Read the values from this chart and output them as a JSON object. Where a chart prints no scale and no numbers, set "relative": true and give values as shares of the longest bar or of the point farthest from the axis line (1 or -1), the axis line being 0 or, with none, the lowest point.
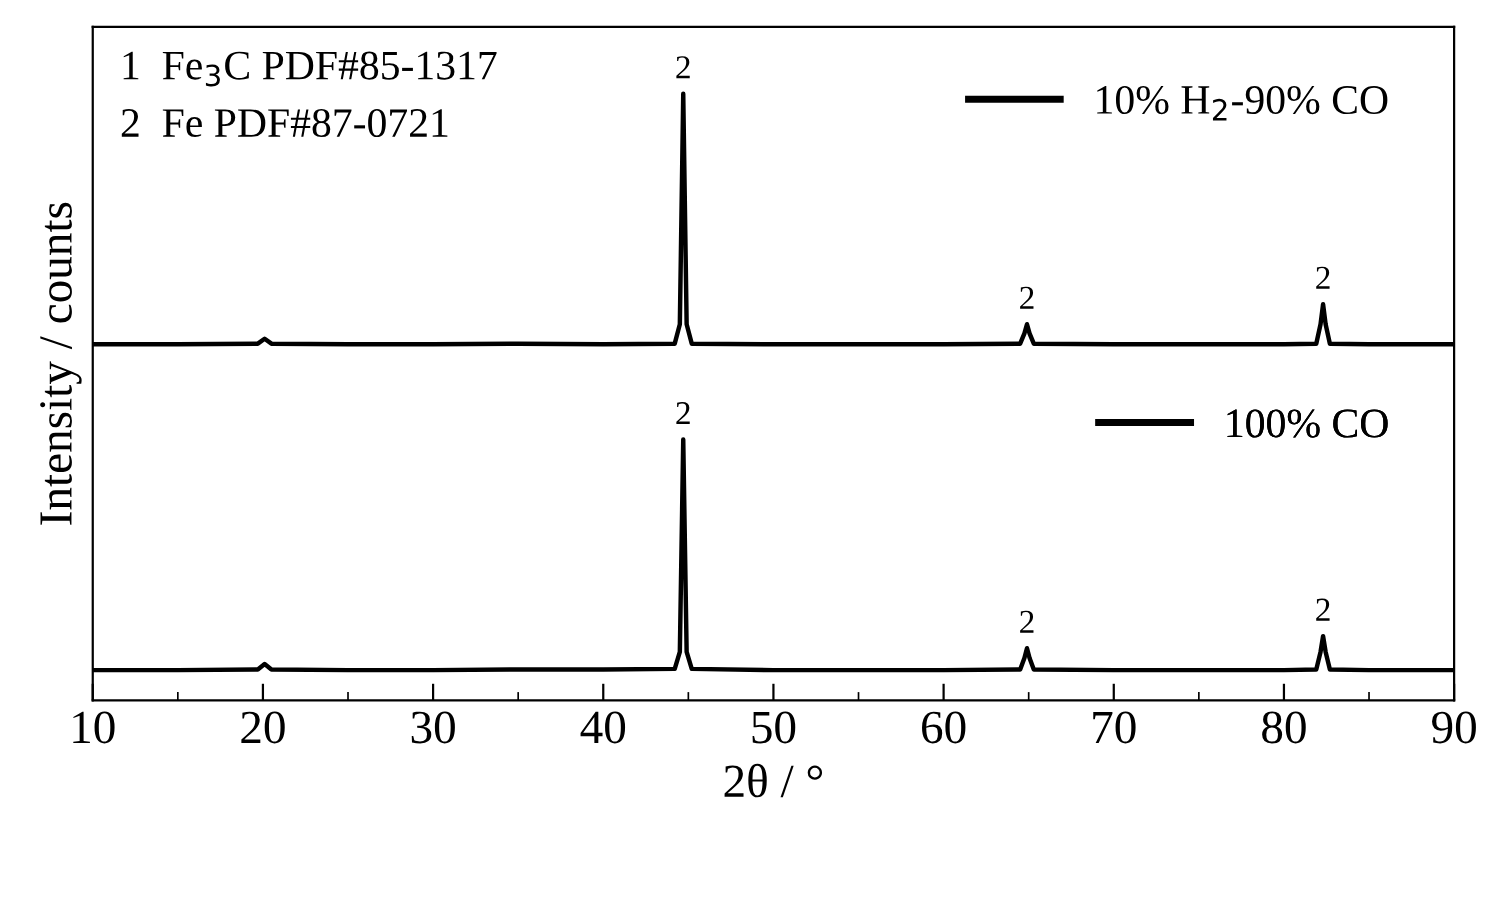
{
  "chart_data": {
    "type": "line",
    "relative": true,
    "xlabel": "2θ / °",
    "ylabel": "Intensity / counts",
    "tick_labels": "x",
    "legend": "right",
    "grid": false,
    "marker": "none",
    "line_style": "solid",
    "x": [
      10,
      15,
      19.7,
      20.1,
      20.5,
      25,
      30,
      35,
      40,
      44.2,
      44.5,
      44.7,
      44.9,
      45.2,
      50,
      55,
      60,
      64.5,
      64.75,
      64.9,
      65.05,
      65.3,
      70,
      75,
      80,
      81.9,
      82.15,
      82.3,
      82.45,
      82.7,
      85,
      90
    ],
    "xlim": [
      10,
      90
    ],
    "xticks": [
      10,
      {
        "value": 15,
        "label": null
      },
      20,
      {
        "value": 25,
        "label": null
      },
      30,
      {
        "value": 35,
        "label": null
      },
      40,
      {
        "value": 45,
        "label": null
      },
      50,
      {
        "value": 55,
        "label": null
      },
      60,
      {
        "value": 65,
        "label": null
      },
      70,
      {
        "value": 75,
        "label": null
      },
      80,
      {
        "value": 85,
        "label": null
      },
      90
    ],
    "series": [
      {
        "name": "10% H$_{2}$-90% CO",
        "color": "#000000",
        "values": [
          0.587,
          0.587,
          0.588,
          0.596,
          0.588,
          0.587,
          0.587,
          0.588,
          0.587,
          0.588,
          0.62,
          1.0,
          0.62,
          0.588,
          0.587,
          0.587,
          0.587,
          0.588,
          0.605,
          0.62,
          0.605,
          0.588,
          0.587,
          0.587,
          0.587,
          0.588,
          0.62,
          0.653,
          0.62,
          0.588,
          0.587,
          0.587
        ]
      },
      {
        "name": "100% CO",
        "color": "#000000",
        "values": [
          0.05,
          0.05,
          0.051,
          0.06,
          0.051,
          0.05,
          0.05,
          0.051,
          0.051,
          0.052,
          0.08,
          0.43,
          0.08,
          0.052,
          0.05,
          0.05,
          0.05,
          0.051,
          0.07,
          0.086,
          0.07,
          0.051,
          0.05,
          0.05,
          0.05,
          0.051,
          0.08,
          0.106,
          0.08,
          0.051,
          0.05,
          0.05
        ]
      }
    ],
    "annotations": [
      "1  Fe$_{3}$C PDF#85-1317",
      "2  Fe PDF#87-0721",
      {
        "text": "2",
        "x": 44.7,
        "y": 1.0
      },
      {
        "text": "2",
        "x": 64.9,
        "y": 0.62
      },
      {
        "text": "2",
        "x": 82.3,
        "y": 0.653
      },
      {
        "text": "2",
        "x": 44.7,
        "y": 0.43
      },
      {
        "text": "2",
        "x": 64.9,
        "y": 0.086
      },
      {
        "text": "2",
        "x": 82.3,
        "y": 0.106
      }
    ]
  }
}
